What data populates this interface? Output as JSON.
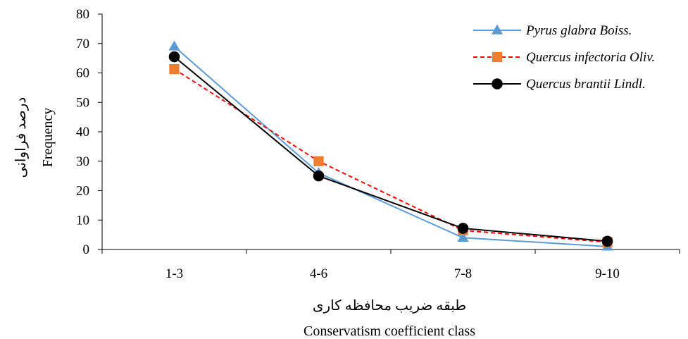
{
  "chart_data": {
    "type": "line",
    "title": "",
    "xlabel": "Conservatism coefficient class",
    "xlabel_fa": "طبقه ضریب محافظه کاری",
    "ylabel": "Frequency",
    "ylabel_fa": "درصد فراوانی",
    "categories": [
      "1-3",
      "4-6",
      "7-8",
      "9-10"
    ],
    "ylim": [
      0,
      80
    ],
    "yticks": [
      "0",
      "10",
      "20",
      "30",
      "40",
      "50",
      "60",
      "70",
      "80"
    ],
    "grid": false,
    "legend_position": "top-right",
    "series": [
      {
        "name": "Pyrus glabra Boiss.",
        "values": [
          69,
          26,
          4,
          1
        ],
        "color": "#5B9BD5",
        "marker": "triangle",
        "line_style": "solid"
      },
      {
        "name": "Quercus infectoria Oliv.",
        "values": [
          61.3,
          30,
          6.5,
          2.5
        ],
        "color": "#FF0000",
        "marker_color": "#ED7D31",
        "marker": "square",
        "line_style": "dashed"
      },
      {
        "name": "Quercus brantii Lindl.",
        "values": [
          65.5,
          25,
          7.2,
          2.8
        ],
        "color": "#000000",
        "marker": "circle",
        "line_style": "solid"
      }
    ]
  }
}
